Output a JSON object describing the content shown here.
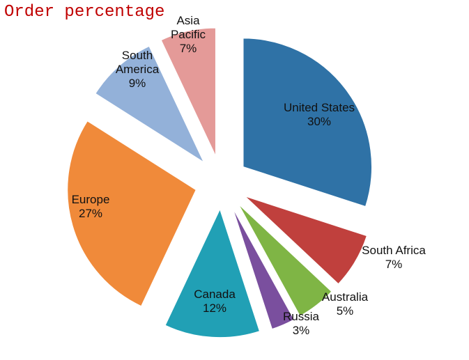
{
  "chart_data": {
    "type": "pie",
    "title": "Order percentage",
    "exploded": true,
    "slices": [
      {
        "label": "United States",
        "value": 30,
        "pct_label": "30%",
        "color": "#2f72a6"
      },
      {
        "label": "South Africa",
        "value": 7,
        "pct_label": "7%",
        "color": "#c0403d"
      },
      {
        "label": "Australia",
        "value": 5,
        "pct_label": "5%",
        "color": "#7fb545"
      },
      {
        "label": "Russia",
        "value": 3,
        "pct_label": "3%",
        "color": "#7a4f9e"
      },
      {
        "label": "Canada",
        "value": 12,
        "pct_label": "12%",
        "color": "#21a0b5"
      },
      {
        "label": "Europe",
        "value": 27,
        "pct_label": "27%",
        "color": "#f08a3a"
      },
      {
        "label": "South America",
        "value": 9,
        "pct_label": "9%",
        "color": "#93b1d9"
      },
      {
        "label": "Asia Pacific",
        "value": 7,
        "pct_label": "7%",
        "color": "#e49a98"
      }
    ]
  }
}
